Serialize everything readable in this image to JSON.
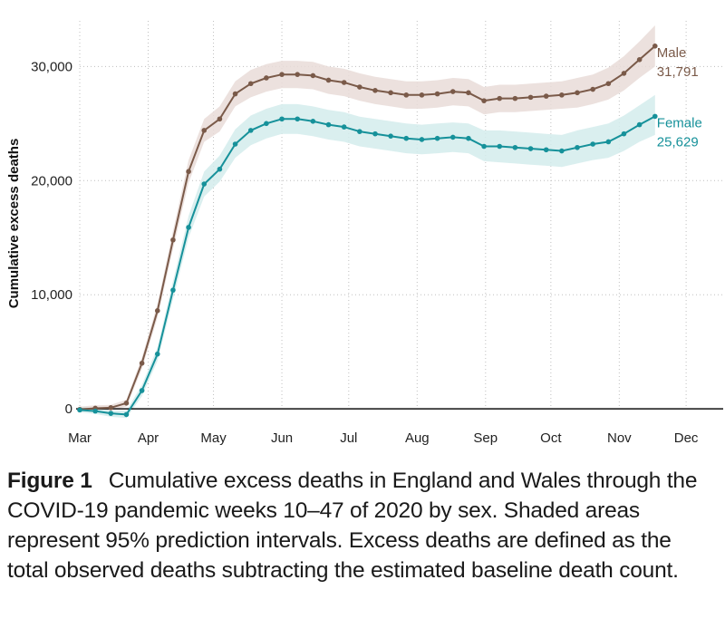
{
  "colors": {
    "male": "#7a5a49",
    "male_band": "#e9dcd8",
    "female": "#16919a",
    "female_band": "#d3ecec",
    "zero_line": "#111111"
  },
  "chart_data": {
    "type": "line",
    "title": "",
    "xlabel": "",
    "ylabel": "Cumulative excess deaths",
    "ylim": [
      -1500,
      34000
    ],
    "yticks": [
      0,
      10000,
      20000,
      30000
    ],
    "ytick_labels": [
      "0",
      "10,000",
      "20,000",
      "30,000"
    ],
    "xlim": [
      0,
      41.5
    ],
    "xticks": [
      0,
      4.4,
      8.6,
      13,
      17.3,
      21.7,
      26.1,
      30.3,
      34.7,
      39
    ],
    "xtick_labels": [
      "Mar",
      "Apr",
      "May",
      "Jun",
      "Jul",
      "Aug",
      "Sep",
      "Oct",
      "Nov",
      "Dec"
    ],
    "grid": true,
    "series": [
      {
        "name": "Male",
        "end_label": "31,791",
        "x": [
          0,
          1,
          2,
          3,
          4,
          5,
          6,
          7,
          8,
          9,
          10,
          11,
          12,
          13,
          14,
          15,
          16,
          17,
          18,
          19,
          20,
          21,
          22,
          23,
          24,
          25,
          26,
          27,
          28,
          29,
          30,
          31,
          32,
          33,
          34,
          35,
          36,
          37
        ],
        "values": [
          -50,
          50,
          100,
          500,
          4000,
          8600,
          14800,
          20800,
          24400,
          25400,
          27600,
          28500,
          29000,
          29300,
          29300,
          29200,
          28800,
          28600,
          28200,
          27900,
          27700,
          27500,
          27500,
          27600,
          27800,
          27700,
          27000,
          27200,
          27200,
          27300,
          27400,
          27500,
          27700,
          28000,
          28500,
          29400,
          30600,
          31791
        ],
        "lower": [
          -300,
          -200,
          -150,
          200,
          3500,
          8000,
          14000,
          19800,
          23400,
          24300,
          26500,
          27300,
          27800,
          28100,
          28100,
          28000,
          27600,
          27400,
          27000,
          26700,
          26500,
          26300,
          26300,
          26400,
          26600,
          26500,
          25800,
          26000,
          26000,
          26100,
          26200,
          26300,
          26400,
          26700,
          27100,
          27900,
          29000,
          30000
        ],
        "upper": [
          200,
          300,
          350,
          800,
          4500,
          9200,
          15600,
          21800,
          25400,
          26500,
          28700,
          29700,
          30200,
          30500,
          30500,
          30400,
          30000,
          29800,
          29400,
          29100,
          28900,
          28700,
          28700,
          28800,
          29000,
          28900,
          28200,
          28400,
          28400,
          28500,
          28600,
          28700,
          29000,
          29300,
          29900,
          30900,
          32200,
          33600
        ]
      },
      {
        "name": "Female",
        "end_label": "25,629",
        "x": [
          0,
          1,
          2,
          3,
          4,
          5,
          6,
          7,
          8,
          9,
          10,
          11,
          12,
          13,
          14,
          15,
          16,
          17,
          18,
          19,
          20,
          21,
          22,
          23,
          24,
          25,
          26,
          27,
          28,
          29,
          30,
          31,
          32,
          33,
          34,
          35,
          36,
          37
        ],
        "values": [
          -100,
          -200,
          -400,
          -500,
          1600,
          4800,
          10400,
          15900,
          19700,
          21000,
          23200,
          24400,
          25000,
          25400,
          25400,
          25200,
          24900,
          24700,
          24300,
          24100,
          23900,
          23700,
          23600,
          23700,
          23800,
          23700,
          23000,
          23000,
          22900,
          22800,
          22700,
          22600,
          22900,
          23200,
          23400,
          24100,
          24900,
          25629
        ],
        "lower": [
          -300,
          -450,
          -700,
          -800,
          1100,
          4200,
          9600,
          15000,
          18600,
          19900,
          22000,
          23100,
          23700,
          24100,
          24100,
          23900,
          23600,
          23400,
          23000,
          22800,
          22600,
          22400,
          22300,
          22400,
          22500,
          22400,
          21700,
          21600,
          21500,
          21400,
          21300,
          21200,
          21500,
          21800,
          22000,
          22600,
          23400,
          24000
        ],
        "upper": [
          150,
          50,
          -150,
          -150,
          2100,
          5400,
          11200,
          16900,
          20800,
          22200,
          24500,
          25700,
          26300,
          26700,
          26700,
          26500,
          26200,
          26000,
          25600,
          25400,
          25200,
          25000,
          24900,
          25000,
          25100,
          25000,
          24400,
          24400,
          24300,
          24200,
          24100,
          24000,
          24400,
          24700,
          25000,
          25700,
          26600,
          27500
        ]
      }
    ]
  },
  "caption": {
    "label": "Figure 1",
    "text": "Cumulative excess deaths in England and Wales through the COVID-19 pandemic weeks 10–47 of 2020 by sex. Shaded areas represent 95% prediction intervals. Excess deaths are defined as the total observed deaths subtracting the estimated baseline death count."
  }
}
